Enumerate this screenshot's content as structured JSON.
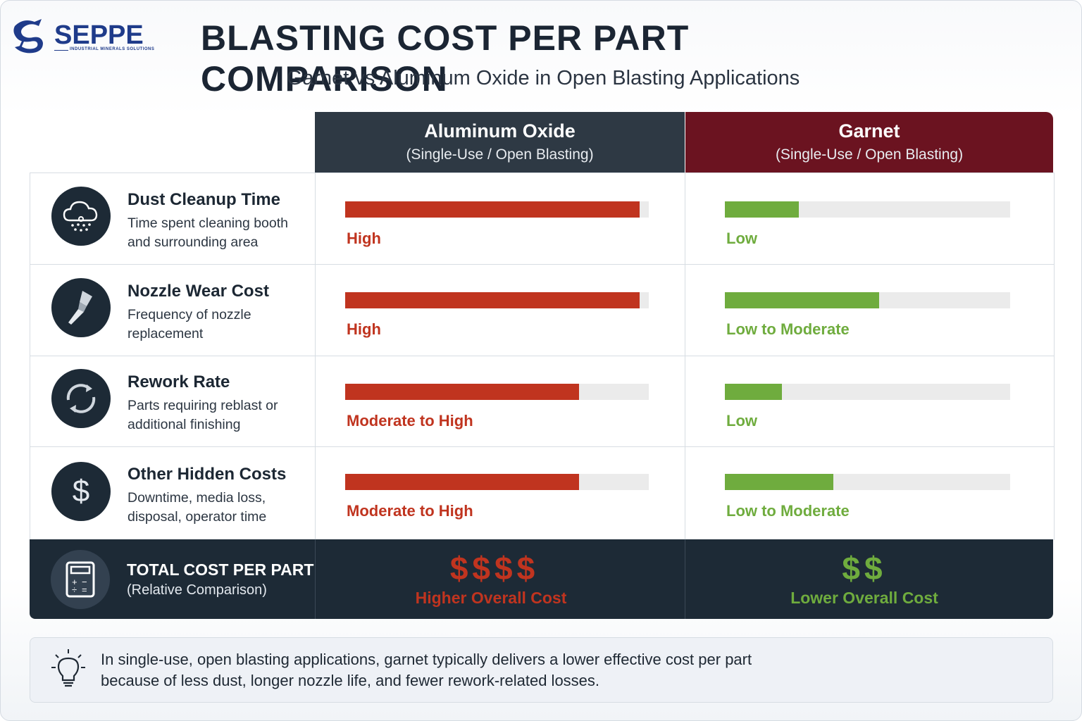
{
  "brand": {
    "name": "SEPPE",
    "tagline": "INDUSTRIAL MINERALS SOLUTIONS"
  },
  "title": "BLASTING COST PER PART COMPARISON",
  "subtitle": "Garnet vs Aluminum Oxide in Open Blasting Applications",
  "columns": [
    {
      "name": "Aluminum Oxide",
      "sub": "(Single-Use / Open Blasting)"
    },
    {
      "name": "Garnet",
      "sub": "(Single-Use / Open Blasting)"
    }
  ],
  "rows": [
    {
      "title": "Dust Cleanup Time",
      "desc": "Time spent cleaning booth and surrounding area",
      "icon": "dust-cloud-icon"
    },
    {
      "title": "Nozzle Wear Cost",
      "desc": "Frequency of nozzle replacement",
      "icon": "nozzle-icon"
    },
    {
      "title": "Rework Rate",
      "desc": "Parts requiring reblast or additional finishing",
      "icon": "refresh-cycle-icon"
    },
    {
      "title": "Other Hidden Costs",
      "desc": "Downtime, media loss, disposal, operator time",
      "icon": "dollar-icon"
    }
  ],
  "chart_data": {
    "type": "bar",
    "categories": [
      "Dust Cleanup Time",
      "Nozzle Wear Cost",
      "Rework Rate",
      "Other Hidden Costs"
    ],
    "series": [
      {
        "name": "Aluminum Oxide",
        "values": [
          0.97,
          0.97,
          0.77,
          0.77
        ],
        "labels": [
          "High",
          "High",
          "Moderate to High",
          "Moderate to High"
        ],
        "color": "#c0341f"
      },
      {
        "name": "Garnet",
        "values": [
          0.26,
          0.54,
          0.2,
          0.38
        ],
        "labels": [
          "Low",
          "Low to Moderate",
          "Low",
          "Low to Moderate"
        ],
        "color": "#6fac3e"
      }
    ],
    "ylim": [
      0,
      1
    ],
    "grid": false
  },
  "total": {
    "title": "TOTAL COST PER PART",
    "desc": "(Relative Comparison)",
    "icon": "calculator-icon",
    "aluminum": {
      "symbols": "$$$$",
      "label": "Higher Overall Cost",
      "color": "#c0341f"
    },
    "garnet": {
      "symbols": "$$",
      "label": "Lower Overall Cost",
      "color": "#6fac3e"
    }
  },
  "note": {
    "icon": "lightbulb-icon",
    "text": "In single-use, open blasting applications, garnet typically delivers a lower effective cost per part because of less dust, longer nozzle life, and fewer rework-related losses."
  },
  "colors": {
    "navy": "#1d2a36",
    "aluminum_header": "#2e3944",
    "garnet_header": "#6b1320",
    "high": "#c0341f",
    "low": "#6fac3e",
    "track": "#ebebeb"
  }
}
